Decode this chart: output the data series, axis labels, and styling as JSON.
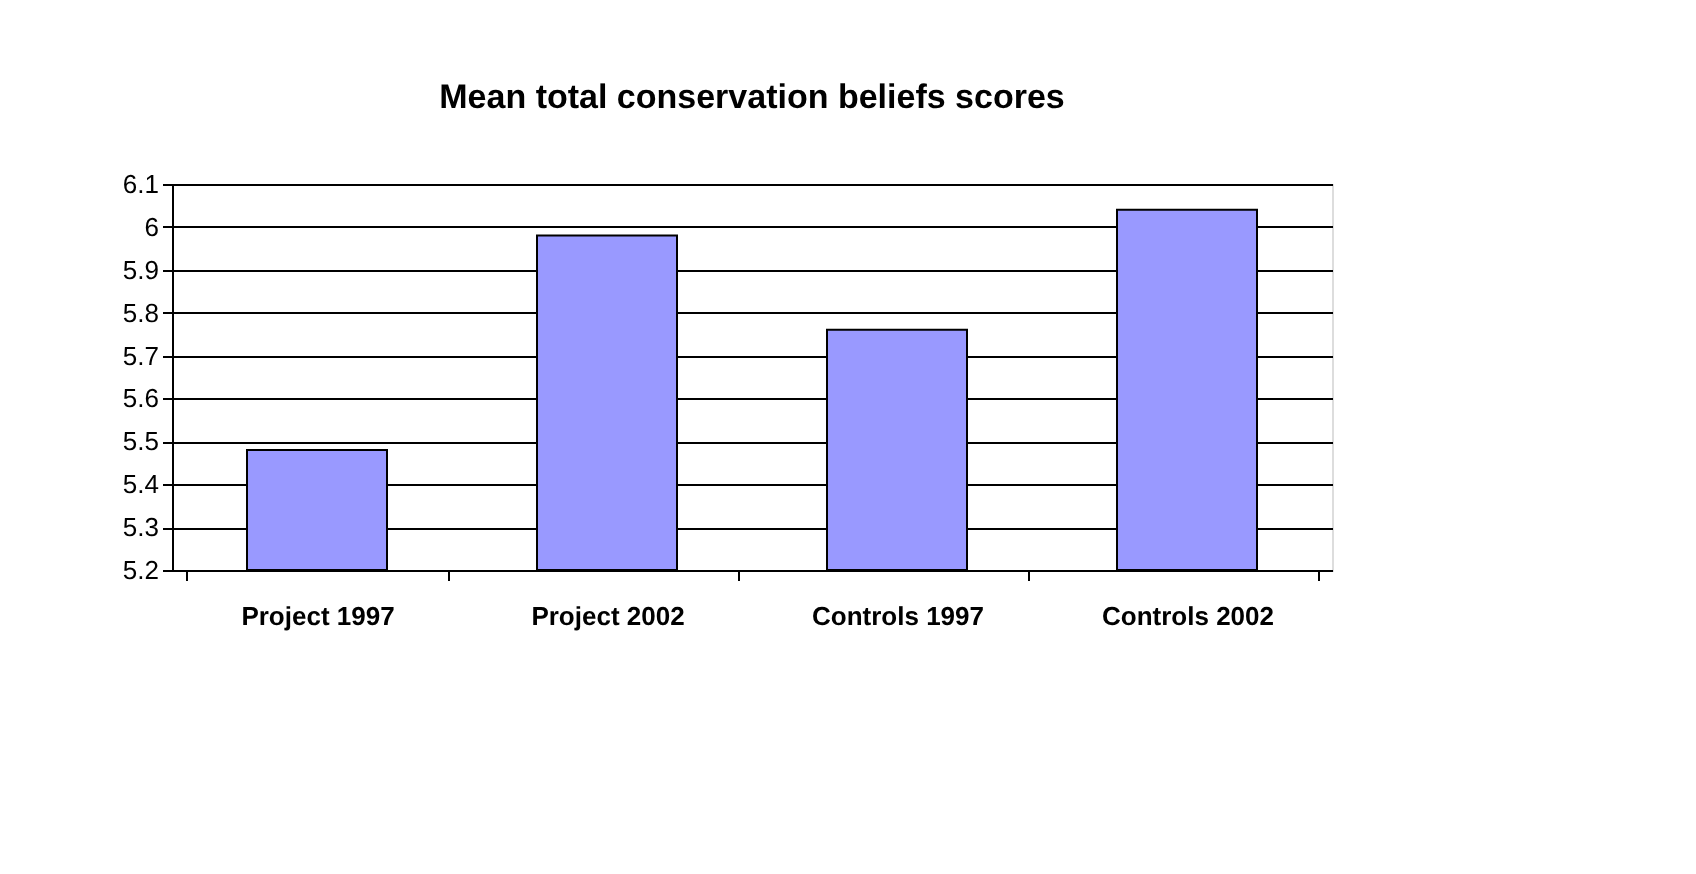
{
  "chart_data": {
    "type": "bar",
    "title": "Mean total conservation beliefs scores",
    "categories": [
      "Project 1997",
      "Project 2002",
      "Controls 1997",
      "Controls 2002"
    ],
    "values": [
      5.48,
      5.98,
      5.76,
      6.04
    ],
    "color": "#9999ff",
    "ylim": [
      5.2,
      6.1
    ],
    "yticks": [
      5.2,
      5.3,
      5.4,
      5.5,
      5.6,
      5.7,
      5.8,
      5.9,
      6,
      6.1
    ],
    "grid": "y"
  }
}
